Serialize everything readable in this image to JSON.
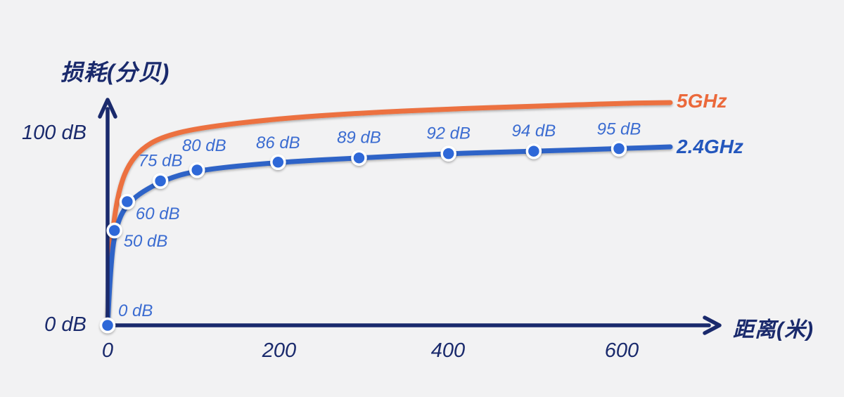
{
  "page": {
    "background": "#F2F2F3"
  },
  "chart_data": {
    "type": "line",
    "title": "",
    "ylabel": "损耗(分贝)",
    "xlabel": "距离(米)",
    "y_tick_top": "100 dB",
    "y_tick_bottom": "0 dB",
    "x_ticks": [
      "0",
      "200",
      "400",
      "600"
    ],
    "x_tick_values_m": [
      0,
      200,
      400,
      600
    ],
    "y_axis_labeled_range_db": [
      0,
      100
    ],
    "grid": false,
    "legend_position": "right-end-of-lines",
    "axis_color": "#1A2A6C",
    "point_label_color": "#3B6CD1",
    "series": [
      {
        "name": "2.4GHz",
        "color": "#2E63C7",
        "legend_color": "#2457BD",
        "marker_color": "#2D68D8",
        "markers": true,
        "distances_m": [
          0,
          8,
          23,
          62,
          105,
          200,
          295,
          400,
          500,
          600
        ],
        "loss_db": [
          0,
          50,
          60,
          75,
          80,
          86,
          89,
          92,
          94,
          95
        ],
        "point_labels": [
          "0 dB",
          "50 dB",
          "60 dB",
          "75 dB",
          "80 dB",
          "86 dB",
          "89 dB",
          "92 dB",
          "94 dB",
          "95 dB"
        ]
      },
      {
        "name": "5GHz",
        "color": "#EC7141",
        "legend_color": "#EB693B",
        "markers": false,
        "distances_m_estimated": [
          0,
          3,
          8,
          15,
          25,
          40,
          62,
          105,
          200,
          300,
          400,
          500,
          600
        ],
        "loss_db_estimated": [
          0,
          35,
          58,
          74,
          85,
          93,
          99,
          104,
          109,
          112,
          114,
          115.5,
          117
        ]
      }
    ]
  }
}
